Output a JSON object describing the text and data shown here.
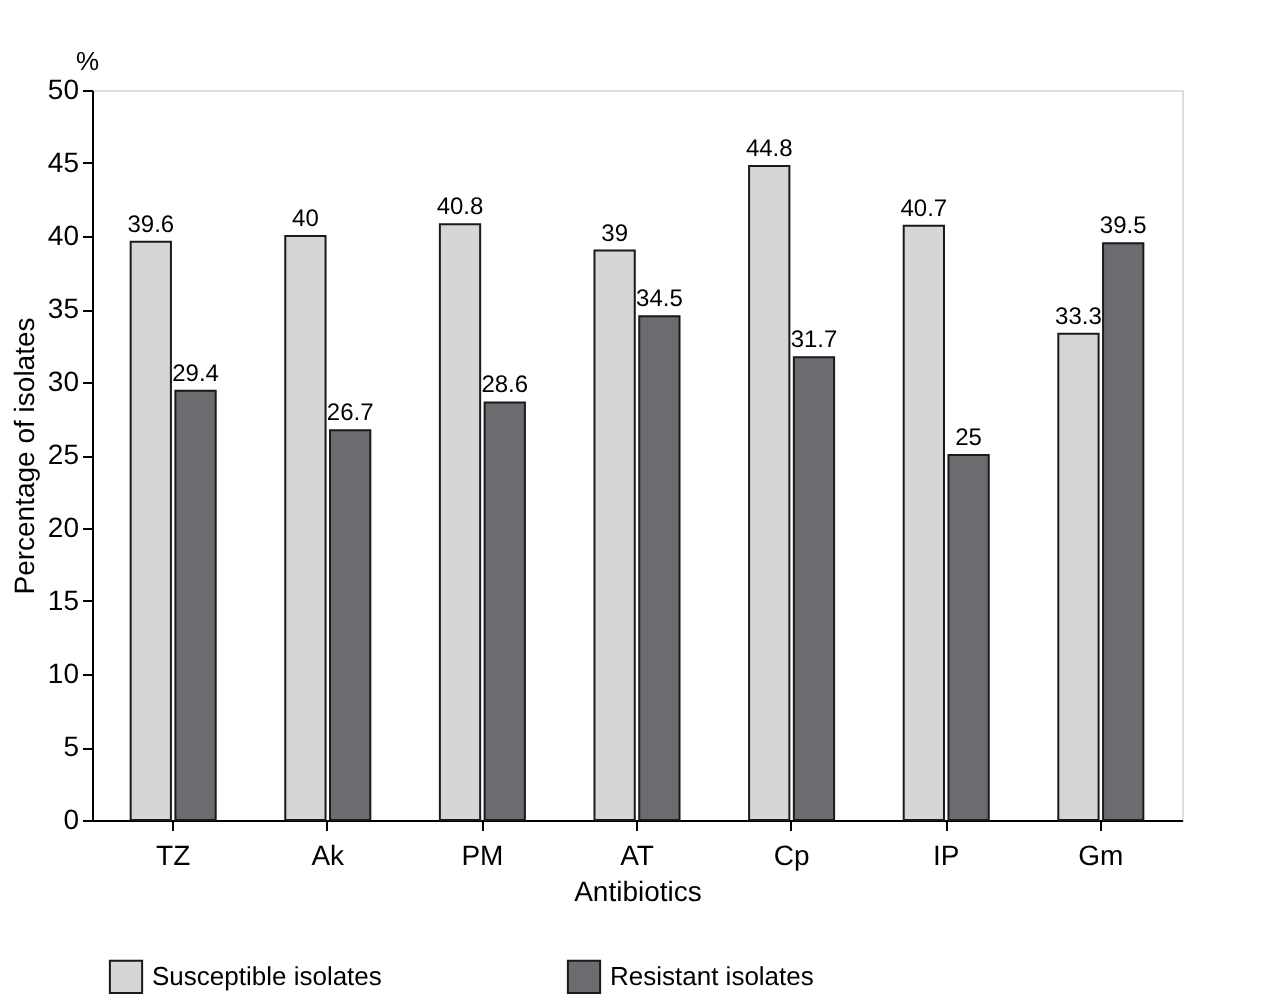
{
  "chart_data": {
    "type": "bar",
    "xlabel": "Antibiotics",
    "ylabel": "Percentage of isolates",
    "annotations": [
      "%"
    ],
    "categories": [
      "TZ",
      "Ak",
      "PM",
      "AT",
      "Cp",
      "IP",
      "Gm"
    ],
    "series": [
      {
        "name": "Susceptible isolates",
        "color": "#d6d6d6",
        "values": [
          39.6,
          40,
          40.8,
          39,
          44.8,
          40.7,
          33.3
        ]
      },
      {
        "name": "Resistant isolates",
        "color": "#6b6b70",
        "values": [
          29.4,
          26.7,
          28.6,
          34.5,
          31.7,
          25,
          39.5
        ]
      }
    ],
    "ylim": [
      0,
      50
    ],
    "yticks": [
      0,
      5,
      10,
      15,
      20,
      25,
      30,
      35,
      40,
      45,
      50
    ],
    "data_labels": true,
    "grid": false,
    "legend": "bottom"
  }
}
